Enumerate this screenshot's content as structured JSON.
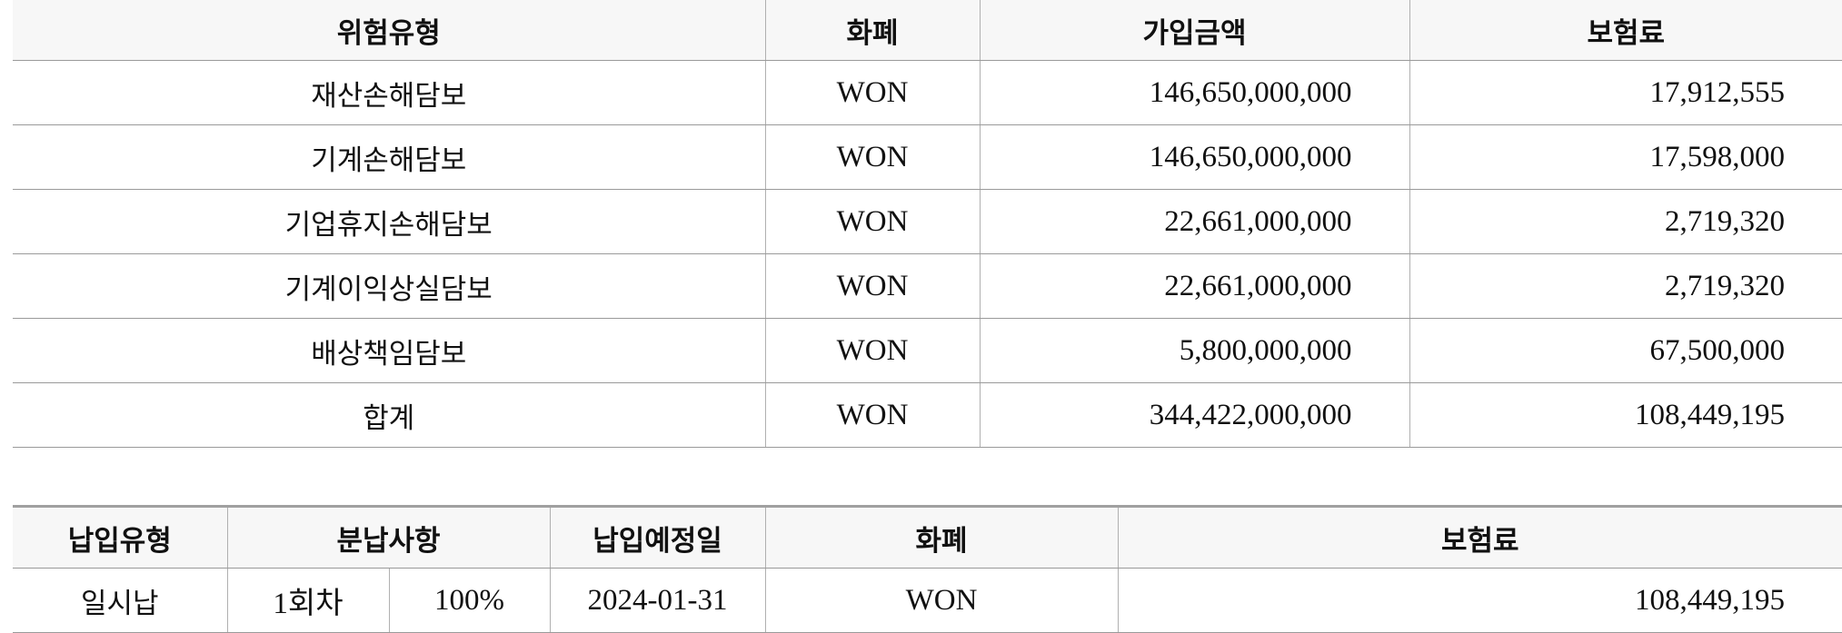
{
  "coverage_table": {
    "headers": [
      "위험유형",
      "화폐",
      "가입금액",
      "보험료"
    ],
    "rows": [
      {
        "risk": "재산손해담보",
        "currency": "WON",
        "amount": "146,650,000,000",
        "premium": "17,912,555"
      },
      {
        "risk": "기계손해담보",
        "currency": "WON",
        "amount": "146,650,000,000",
        "premium": "17,598,000"
      },
      {
        "risk": "기업휴지손해담보",
        "currency": "WON",
        "amount": "22,661,000,000",
        "premium": "2,719,320"
      },
      {
        "risk": "기계이익상실담보",
        "currency": "WON",
        "amount": "22,661,000,000",
        "premium": "2,719,320"
      },
      {
        "risk": "배상책임담보",
        "currency": "WON",
        "amount": "5,800,000,000",
        "premium": "67,500,000"
      },
      {
        "risk": "합계",
        "currency": "WON",
        "amount": "344,422,000,000",
        "premium": "108,449,195"
      }
    ]
  },
  "payment_table": {
    "headers": [
      "납입유형",
      "분납사항",
      "납입예정일",
      "화폐",
      "보험료"
    ],
    "rows": [
      {
        "type": "일시납",
        "installment": "1회차",
        "ratio": "100%",
        "due_date": "2024-01-31",
        "currency": "WON",
        "premium": "108,449,195"
      }
    ]
  }
}
